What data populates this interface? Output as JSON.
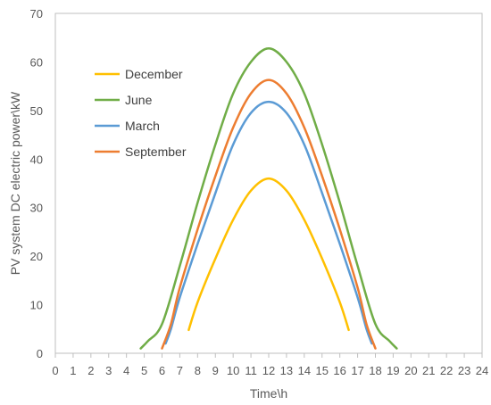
{
  "chart_data": {
    "type": "line",
    "title": "",
    "xlabel": "Time\\h",
    "ylabel": "PV system DC electric power\\kW",
    "xlim": [
      0,
      24
    ],
    "ylim": [
      0,
      70
    ],
    "x_ticks": [
      0,
      1,
      2,
      3,
      4,
      5,
      6,
      7,
      8,
      9,
      10,
      11,
      12,
      13,
      14,
      15,
      16,
      17,
      18,
      19,
      20,
      21,
      22,
      23,
      24
    ],
    "y_ticks": [
      0,
      10,
      20,
      30,
      40,
      50,
      60,
      70
    ],
    "grid": false,
    "legend": "upper-left",
    "series": [
      {
        "name": "December",
        "color": "#FFC000",
        "points": [
          [
            7.5,
            4.8
          ],
          [
            8,
            10.5
          ],
          [
            9,
            19.5
          ],
          [
            10,
            27.5
          ],
          [
            11,
            33.5
          ],
          [
            12,
            36
          ],
          [
            13,
            33.5
          ],
          [
            14,
            27.5
          ],
          [
            15,
            19.5
          ],
          [
            16,
            10.5
          ],
          [
            16.5,
            4.8
          ]
        ]
      },
      {
        "name": "June",
        "color": "#70AD47",
        "points": [
          [
            4.8,
            1
          ],
          [
            5.2,
            2.5
          ],
          [
            6,
            6
          ],
          [
            7,
            18
          ],
          [
            8,
            31
          ],
          [
            9,
            43
          ],
          [
            10,
            53.5
          ],
          [
            11,
            60
          ],
          [
            12,
            62.8
          ],
          [
            13,
            60
          ],
          [
            14,
            53.5
          ],
          [
            15,
            43
          ],
          [
            16,
            31
          ],
          [
            17,
            18
          ],
          [
            18,
            6
          ],
          [
            18.8,
            2.5
          ],
          [
            19.2,
            1
          ]
        ]
      },
      {
        "name": "March",
        "color": "#5B9BD5",
        "points": [
          [
            6.2,
            2
          ],
          [
            6.5,
            5
          ],
          [
            7,
            11.5
          ],
          [
            8,
            22.5
          ],
          [
            9,
            33
          ],
          [
            10,
            43
          ],
          [
            11,
            49.5
          ],
          [
            12,
            51.8
          ],
          [
            13,
            49.5
          ],
          [
            14,
            43
          ],
          [
            15,
            33
          ],
          [
            16,
            22.5
          ],
          [
            17,
            11.5
          ],
          [
            17.5,
            5
          ],
          [
            17.8,
            2
          ]
        ]
      },
      {
        "name": "September",
        "color": "#ED7D31",
        "points": [
          [
            6,
            1
          ],
          [
            6.5,
            6
          ],
          [
            7,
            13.5
          ],
          [
            8,
            25.5
          ],
          [
            9,
            36.5
          ],
          [
            10,
            46.5
          ],
          [
            11,
            53.5
          ],
          [
            12,
            56.3
          ],
          [
            13,
            53.5
          ],
          [
            14,
            46.5
          ],
          [
            15,
            36.5
          ],
          [
            16,
            25.5
          ],
          [
            17,
            13.5
          ],
          [
            17.5,
            6
          ],
          [
            18,
            1
          ]
        ]
      }
    ]
  }
}
